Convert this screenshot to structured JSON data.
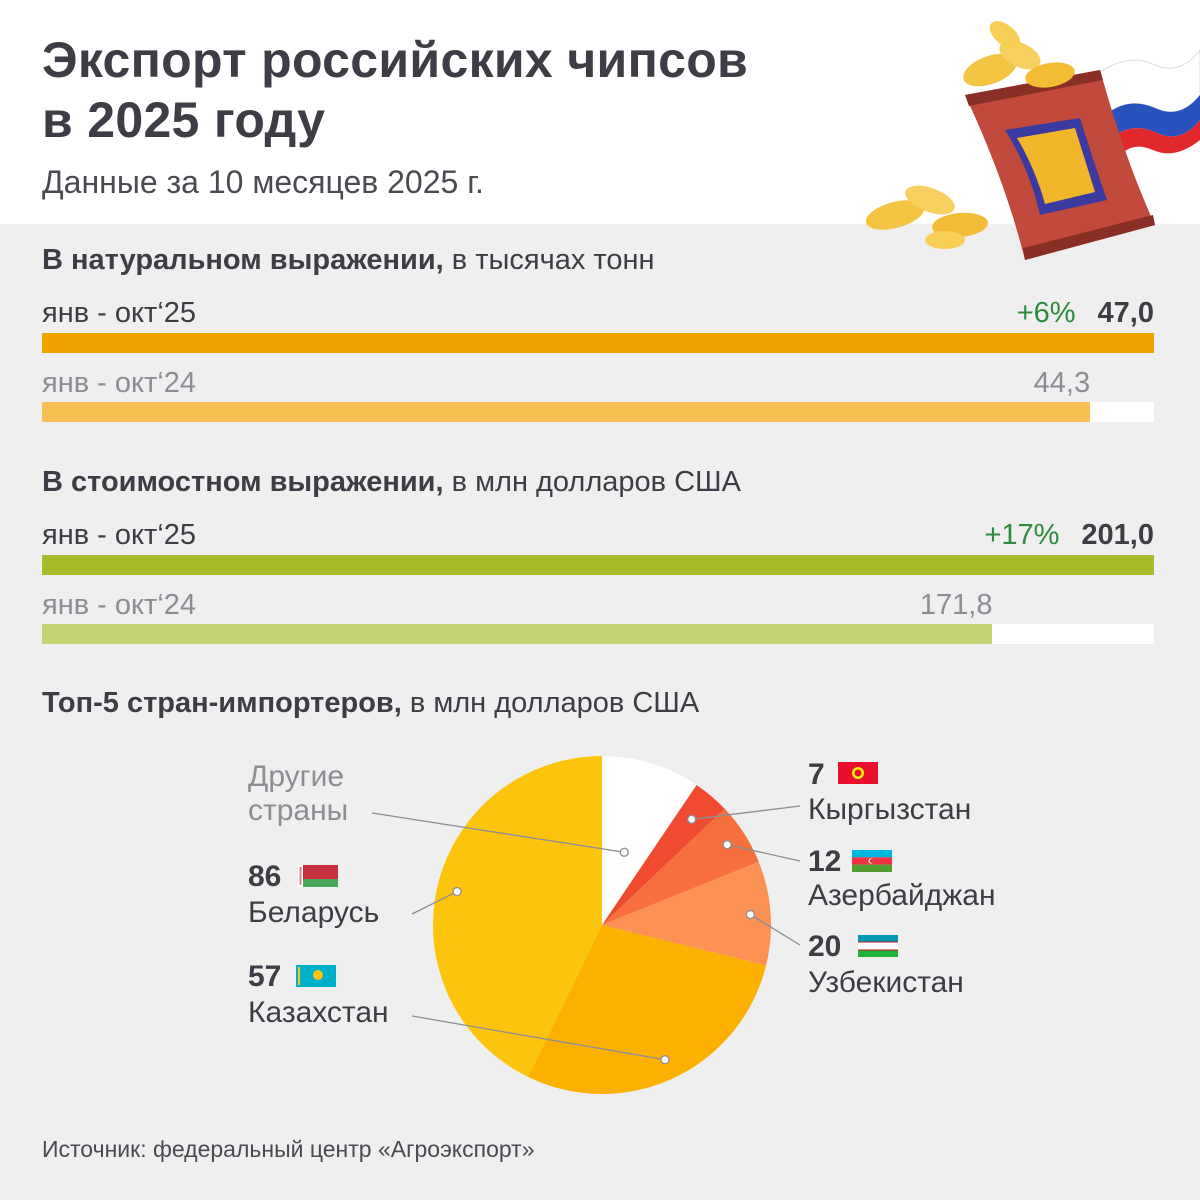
{
  "header": {
    "title_line1": "Экспорт российских чипсов",
    "title_line2": "в 2025 году",
    "subtitle": "Данные за 10 месяцев 2025 г."
  },
  "colors": {
    "volume_current": "#eea300",
    "volume_previous": "#f6c152",
    "value_current": "#a8bb2a",
    "value_previous": "#c6d474",
    "growth": "#2e8b3e"
  },
  "volume": {
    "title_bold": "В натуральном выражении,",
    "title_rest": " в тысячах тонн",
    "current_label": "янв - окт‘25",
    "current_value": "47,0",
    "growth": "+6%",
    "previous_label": "янв - окт‘24",
    "previous_value": "44,3"
  },
  "value": {
    "title_bold": "В стоимостном выражении,",
    "title_rest": " в млн долларов США",
    "current_label": "янв - окт‘25",
    "current_value": "201,0",
    "growth": "+17%",
    "previous_label": "янв - окт‘24",
    "previous_value": "171,8"
  },
  "top5": {
    "title_bold": "Топ-5 стран-импортеров,",
    "title_rest": " в млн долларов США"
  },
  "chart_data": [
    {
      "type": "bar",
      "orientation": "horizontal",
      "title": "В натуральном выражении, в тысячах тонн",
      "categories": [
        "янв - окт‘25",
        "янв - окт‘24"
      ],
      "values": [
        47.0,
        44.3
      ],
      "growth": "+6%"
    },
    {
      "type": "bar",
      "orientation": "horizontal",
      "title": "В стоимостном выражении, в млн долларов США",
      "categories": [
        "янв - окт‘25",
        "янв - окт‘24"
      ],
      "values": [
        201.0,
        171.8
      ],
      "growth": "+17%"
    },
    {
      "type": "pie",
      "title": "Топ-5 стран-импортеров, в млн долларов США",
      "slices": [
        {
          "label_line1": "Другие",
          "label_line2": "страны",
          "value": 19,
          "value_label": "",
          "color": "#ffffff"
        },
        {
          "label_line1": "Кыргызстан",
          "label_line2": "",
          "value": 7,
          "value_label": "7",
          "color": "#f04a31"
        },
        {
          "label_line1": "Азербайджан",
          "label_line2": "",
          "value": 12,
          "value_label": "12",
          "color": "#f66f3c"
        },
        {
          "label_line1": "Узбекистан",
          "label_line2": "",
          "value": 20,
          "value_label": "20",
          "color": "#fb9153"
        },
        {
          "label_line1": "Казахстан",
          "label_line2": "",
          "value": 57,
          "value_label": "57",
          "color": "#fcb000"
        },
        {
          "label_line1": "Беларусь",
          "label_line2": "",
          "value": 86,
          "value_label": "86",
          "color": "#fcc40c"
        }
      ]
    }
  ],
  "source": "Источник: федеральный центр «Агроэкспорт»"
}
